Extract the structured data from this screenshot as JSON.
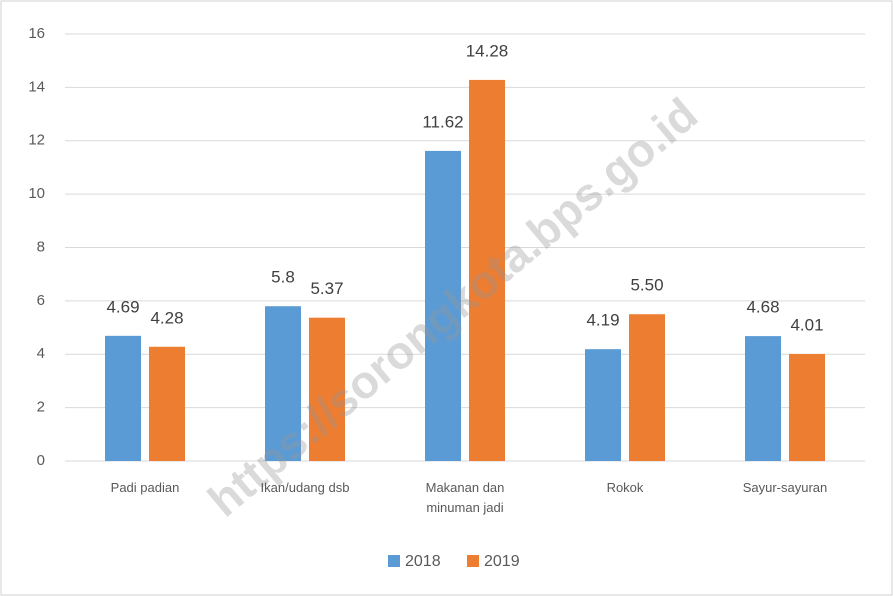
{
  "chart_data": {
    "type": "bar",
    "categories": [
      "Padi padian",
      "Ikan/udang dsb",
      "Makanan dan minuman jadi",
      "Rokok",
      "Sayur-sayuran"
    ],
    "series": [
      {
        "name": "2018",
        "color": "#5b9bd5",
        "values": [
          4.69,
          5.8,
          11.62,
          4.19,
          4.68
        ],
        "value_labels": [
          "4.69",
          "5.8",
          "11.62",
          "4.19",
          "4.68"
        ]
      },
      {
        "name": "2019",
        "color": "#ed7d31",
        "values": [
          4.28,
          5.37,
          14.28,
          5.5,
          4.01
        ],
        "value_labels": [
          "4.28",
          "5.37",
          "14.28",
          "5.50",
          "4.01"
        ]
      }
    ],
    "ylim": [
      0,
      16
    ],
    "yticks": [
      0,
      2,
      4,
      6,
      8,
      10,
      12,
      14,
      16
    ],
    "grid": true,
    "legend": "bottom",
    "watermark": "https://sorongkota.bps.go.id"
  }
}
